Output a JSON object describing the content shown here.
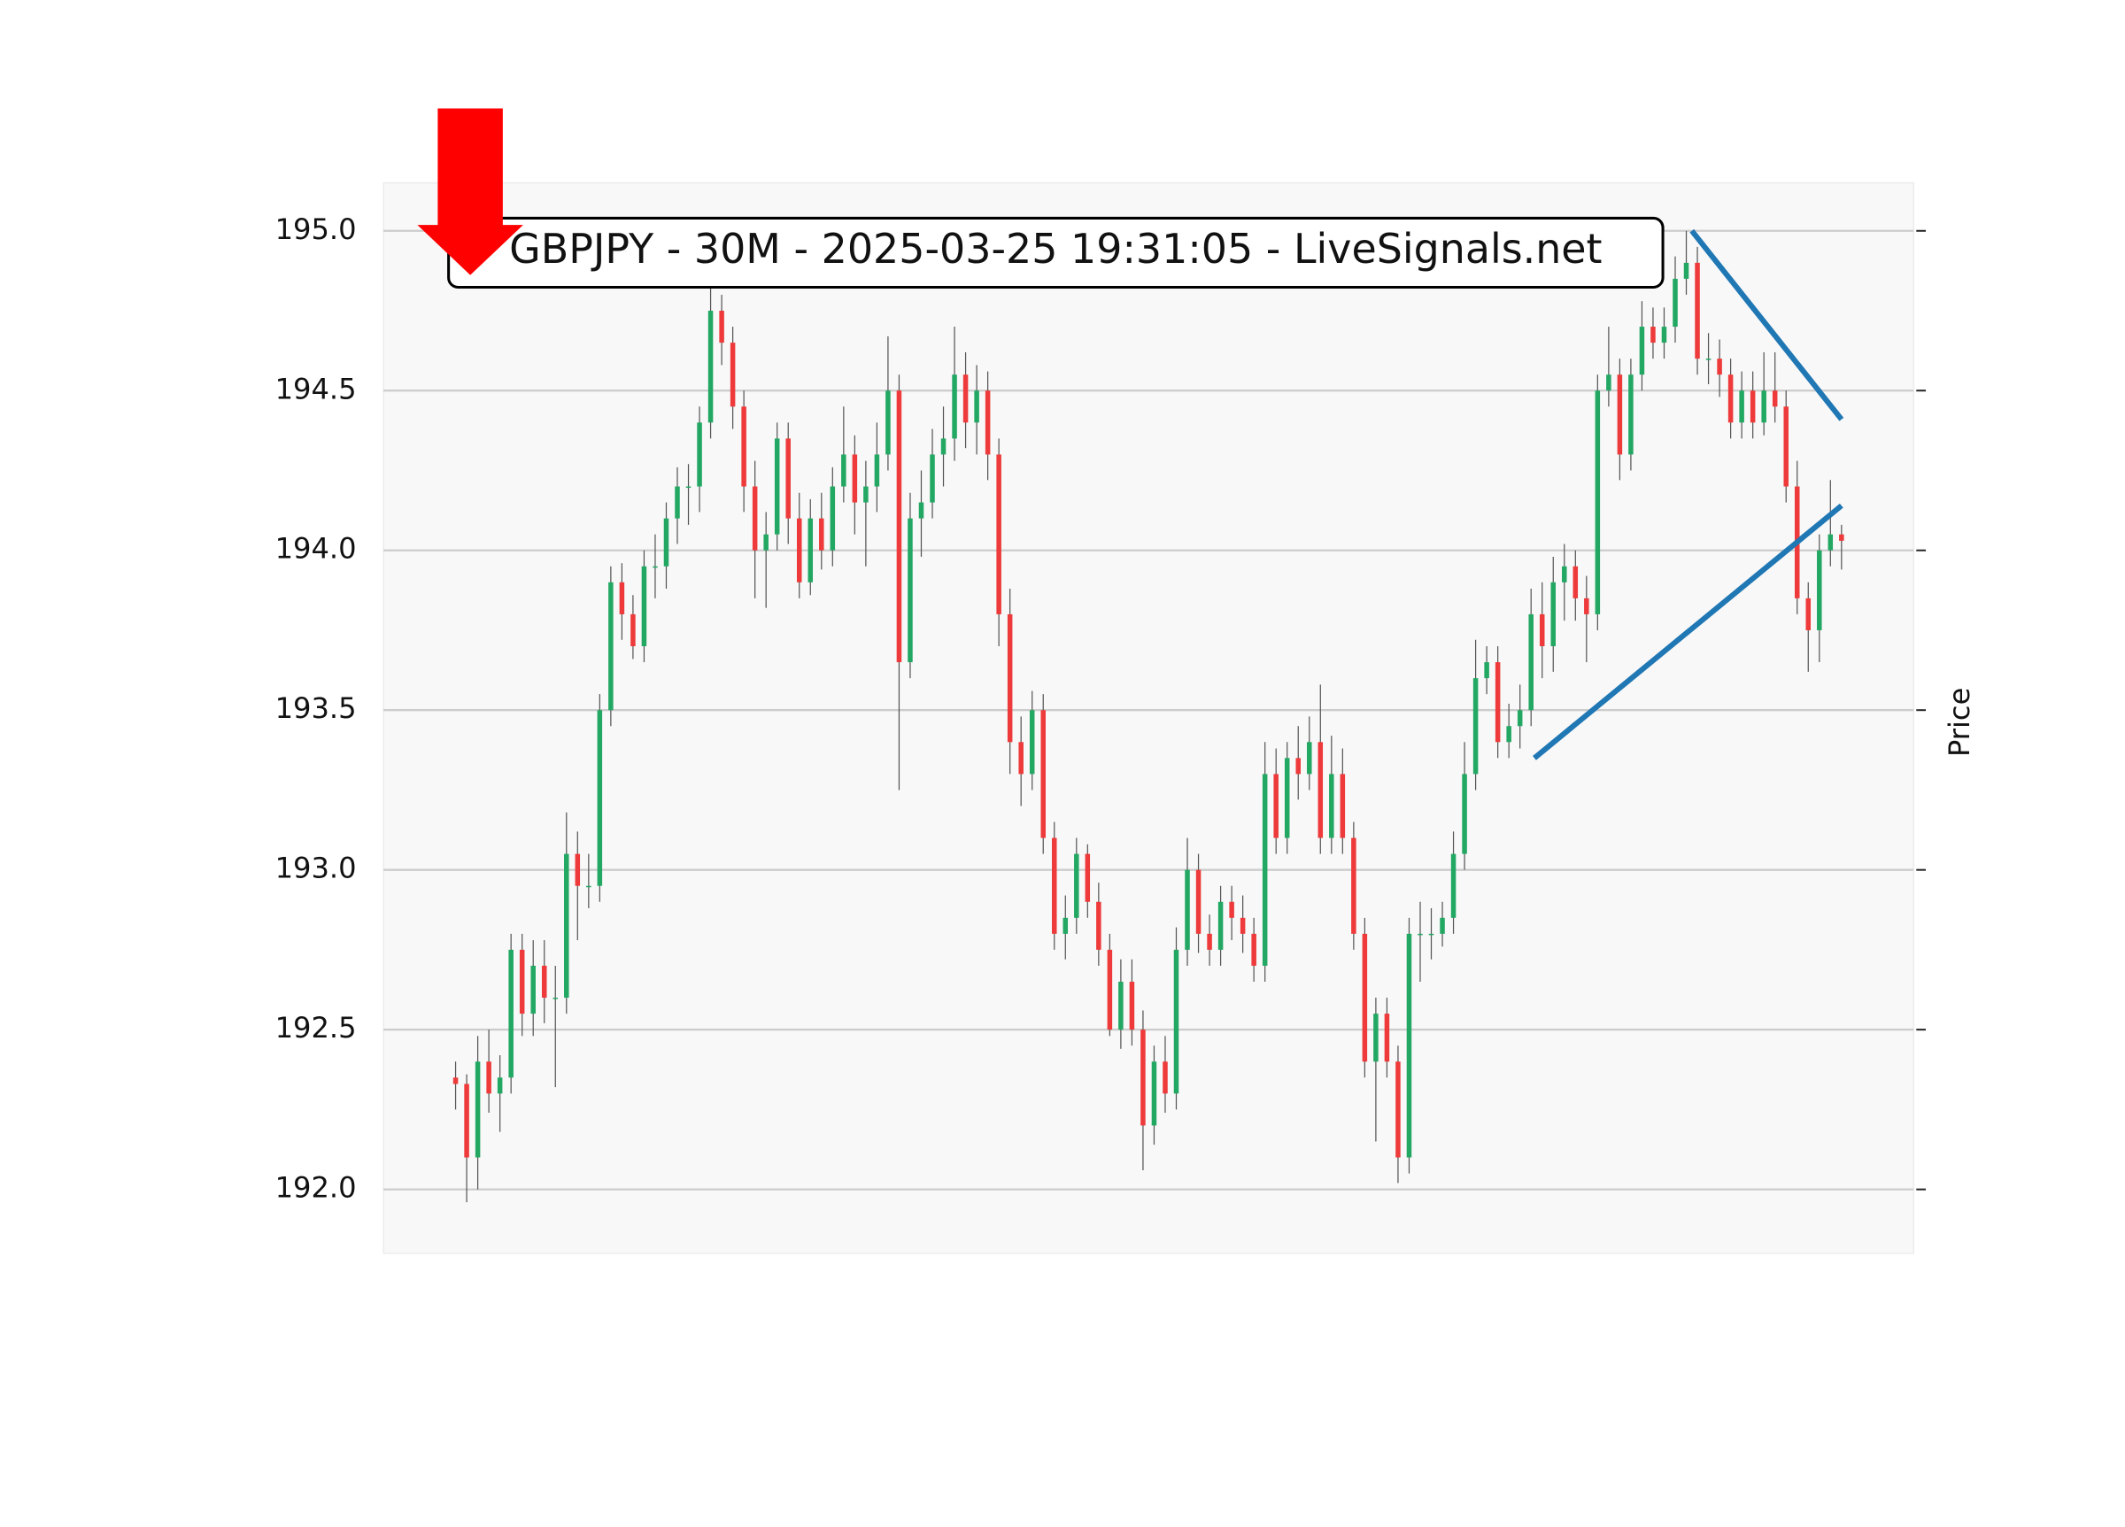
{
  "chart_data": {
    "type": "candlestick",
    "title": "GBPJPY - 30M - 2025-03-25 19:31:05 - LiveSignals.net",
    "y_label": "Price",
    "ylim": [
      191.8,
      195.15
    ],
    "yticks": [
      {
        "value": 192.0,
        "label": "192.0"
      },
      {
        "value": 192.5,
        "label": "192.5"
      },
      {
        "value": 193.0,
        "label": "193.0"
      },
      {
        "value": 193.5,
        "label": "193.5"
      },
      {
        "value": 194.0,
        "label": "194.0"
      },
      {
        "value": 194.5,
        "label": "194.5"
      },
      {
        "value": 195.0,
        "label": "195.0"
      }
    ],
    "grid": true,
    "up_color": "#22a863",
    "down_color": "#ee3a3a",
    "ohlc": [
      [
        192.35,
        192.4,
        192.25,
        192.33
      ],
      [
        192.33,
        192.36,
        191.96,
        192.1
      ],
      [
        192.1,
        192.48,
        192.0,
        192.4
      ],
      [
        192.4,
        192.5,
        192.24,
        192.3
      ],
      [
        192.3,
        192.42,
        192.18,
        192.35
      ],
      [
        192.35,
        192.8,
        192.3,
        192.75
      ],
      [
        192.75,
        192.8,
        192.48,
        192.55
      ],
      [
        192.55,
        192.78,
        192.48,
        192.7
      ],
      [
        192.7,
        192.78,
        192.52,
        192.6
      ],
      [
        192.6,
        192.7,
        192.32,
        192.6
      ],
      [
        192.6,
        193.18,
        192.55,
        193.05
      ],
      [
        193.05,
        193.12,
        192.78,
        192.95
      ],
      [
        192.95,
        193.05,
        192.88,
        192.95
      ],
      [
        192.95,
        193.55,
        192.9,
        193.5
      ],
      [
        193.5,
        193.95,
        193.45,
        193.9
      ],
      [
        193.9,
        193.96,
        193.72,
        193.8
      ],
      [
        193.8,
        193.86,
        193.66,
        193.7
      ],
      [
        193.7,
        194.0,
        193.65,
        193.95
      ],
      [
        193.95,
        194.05,
        193.85,
        193.95
      ],
      [
        193.95,
        194.15,
        193.88,
        194.1
      ],
      [
        194.1,
        194.26,
        194.02,
        194.2
      ],
      [
        194.2,
        194.27,
        194.08,
        194.2
      ],
      [
        194.2,
        194.45,
        194.12,
        194.4
      ],
      [
        194.4,
        194.82,
        194.35,
        194.75
      ],
      [
        194.75,
        194.8,
        194.58,
        194.65
      ],
      [
        194.65,
        194.7,
        194.38,
        194.45
      ],
      [
        194.45,
        194.5,
        194.12,
        194.2
      ],
      [
        194.2,
        194.28,
        193.85,
        194.0
      ],
      [
        194.0,
        194.12,
        193.82,
        194.05
      ],
      [
        194.05,
        194.4,
        194.0,
        194.35
      ],
      [
        194.35,
        194.4,
        194.02,
        194.1
      ],
      [
        194.1,
        194.18,
        193.85,
        193.9
      ],
      [
        193.9,
        194.16,
        193.86,
        194.1
      ],
      [
        194.1,
        194.18,
        193.94,
        194.0
      ],
      [
        194.0,
        194.26,
        193.95,
        194.2
      ],
      [
        194.2,
        194.45,
        194.15,
        194.3
      ],
      [
        194.3,
        194.36,
        194.05,
        194.15
      ],
      [
        194.15,
        194.28,
        193.95,
        194.2
      ],
      [
        194.2,
        194.4,
        194.12,
        194.3
      ],
      [
        194.3,
        194.67,
        194.25,
        194.5
      ],
      [
        194.5,
        194.55,
        193.25,
        193.65
      ],
      [
        193.65,
        194.18,
        193.6,
        194.1
      ],
      [
        194.1,
        194.25,
        193.98,
        194.15
      ],
      [
        194.15,
        194.38,
        194.1,
        194.3
      ],
      [
        194.3,
        194.45,
        194.2,
        194.35
      ],
      [
        194.35,
        194.7,
        194.28,
        194.55
      ],
      [
        194.55,
        194.62,
        194.32,
        194.4
      ],
      [
        194.4,
        194.58,
        194.3,
        194.5
      ],
      [
        194.5,
        194.56,
        194.22,
        194.3
      ],
      [
        194.3,
        194.35,
        193.7,
        193.8
      ],
      [
        193.8,
        193.88,
        193.3,
        193.4
      ],
      [
        193.4,
        193.48,
        193.2,
        193.3
      ],
      [
        193.3,
        193.56,
        193.25,
        193.5
      ],
      [
        193.5,
        193.55,
        193.05,
        193.1
      ],
      [
        193.1,
        193.15,
        192.75,
        192.8
      ],
      [
        192.8,
        192.92,
        192.72,
        192.85
      ],
      [
        192.85,
        193.1,
        192.8,
        193.05
      ],
      [
        193.05,
        193.08,
        192.85,
        192.9
      ],
      [
        192.9,
        192.96,
        192.7,
        192.75
      ],
      [
        192.75,
        192.8,
        192.48,
        192.5
      ],
      [
        192.5,
        192.72,
        192.44,
        192.65
      ],
      [
        192.65,
        192.72,
        192.45,
        192.5
      ],
      [
        192.5,
        192.56,
        192.06,
        192.2
      ],
      [
        192.2,
        192.45,
        192.14,
        192.4
      ],
      [
        192.4,
        192.48,
        192.24,
        192.3
      ],
      [
        192.3,
        192.82,
        192.25,
        192.75
      ],
      [
        192.75,
        193.1,
        192.7,
        193.0
      ],
      [
        193.0,
        193.05,
        192.74,
        192.8
      ],
      [
        192.8,
        192.86,
        192.7,
        192.75
      ],
      [
        192.75,
        192.95,
        192.7,
        192.9
      ],
      [
        192.9,
        192.95,
        192.78,
        192.85
      ],
      [
        192.85,
        192.92,
        192.74,
        192.8
      ],
      [
        192.8,
        192.85,
        192.65,
        192.7
      ],
      [
        192.7,
        193.4,
        192.65,
        193.3
      ],
      [
        193.3,
        193.38,
        193.05,
        193.1
      ],
      [
        193.1,
        193.4,
        193.05,
        193.35
      ],
      [
        193.35,
        193.45,
        193.22,
        193.3
      ],
      [
        193.3,
        193.48,
        193.25,
        193.4
      ],
      [
        193.4,
        193.58,
        193.05,
        193.1
      ],
      [
        193.1,
        193.42,
        193.05,
        193.3
      ],
      [
        193.3,
        193.38,
        193.05,
        193.1
      ],
      [
        193.1,
        193.15,
        192.75,
        192.8
      ],
      [
        192.8,
        192.85,
        192.35,
        192.4
      ],
      [
        192.4,
        192.6,
        192.15,
        192.55
      ],
      [
        192.55,
        192.6,
        192.35,
        192.4
      ],
      [
        192.4,
        192.45,
        192.02,
        192.1
      ],
      [
        192.1,
        192.85,
        192.05,
        192.8
      ],
      [
        192.8,
        192.9,
        192.65,
        192.8
      ],
      [
        192.8,
        192.88,
        192.72,
        192.8
      ],
      [
        192.8,
        192.9,
        192.76,
        192.85
      ],
      [
        192.85,
        193.12,
        192.8,
        193.05
      ],
      [
        193.05,
        193.4,
        193.0,
        193.3
      ],
      [
        193.3,
        193.72,
        193.25,
        193.6
      ],
      [
        193.6,
        193.7,
        193.55,
        193.65
      ],
      [
        193.65,
        193.7,
        193.35,
        193.4
      ],
      [
        193.4,
        193.52,
        193.35,
        193.45
      ],
      [
        193.45,
        193.58,
        193.38,
        193.5
      ],
      [
        193.5,
        193.88,
        193.45,
        193.8
      ],
      [
        193.8,
        193.9,
        193.6,
        193.7
      ],
      [
        193.7,
        193.98,
        193.62,
        193.9
      ],
      [
        193.9,
        194.02,
        193.78,
        193.95
      ],
      [
        193.95,
        194.0,
        193.78,
        193.85
      ],
      [
        193.85,
        193.92,
        193.65,
        193.8
      ],
      [
        193.8,
        194.55,
        193.75,
        194.5
      ],
      [
        194.5,
        194.7,
        194.45,
        194.55
      ],
      [
        194.55,
        194.6,
        194.22,
        194.3
      ],
      [
        194.3,
        194.6,
        194.25,
        194.55
      ],
      [
        194.55,
        194.78,
        194.5,
        194.7
      ],
      [
        194.7,
        194.76,
        194.6,
        194.65
      ],
      [
        194.65,
        194.76,
        194.6,
        194.7
      ],
      [
        194.7,
        194.92,
        194.65,
        194.85
      ],
      [
        194.85,
        195.0,
        194.8,
        194.9
      ],
      [
        194.9,
        194.95,
        194.55,
        194.6
      ],
      [
        194.6,
        194.68,
        194.52,
        194.6
      ],
      [
        194.6,
        194.66,
        194.48,
        194.55
      ],
      [
        194.55,
        194.6,
        194.35,
        194.4
      ],
      [
        194.4,
        194.56,
        194.35,
        194.5
      ],
      [
        194.5,
        194.56,
        194.35,
        194.4
      ],
      [
        194.4,
        194.62,
        194.36,
        194.5
      ],
      [
        194.5,
        194.62,
        194.4,
        194.45
      ],
      [
        194.45,
        194.5,
        194.15,
        194.2
      ],
      [
        194.2,
        194.28,
        193.8,
        193.85
      ],
      [
        193.85,
        193.9,
        193.62,
        193.75
      ],
      [
        193.75,
        194.05,
        193.65,
        194.0
      ],
      [
        194.0,
        194.22,
        193.95,
        194.05
      ],
      [
        194.05,
        194.08,
        193.94,
        194.03
      ]
    ],
    "trendlines": [
      {
        "x": [
          97.3,
          125
        ],
        "y": [
          193.35,
          194.14
        ],
        "color": "#1f77b4"
      },
      {
        "x": [
          111.5,
          125
        ],
        "y": [
          195.0,
          194.41
        ],
        "color": "#1f77b4"
      }
    ]
  }
}
